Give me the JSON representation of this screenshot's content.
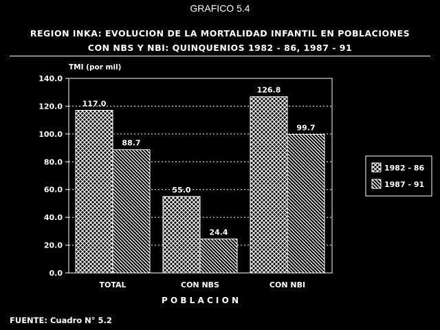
{
  "header": {
    "number": "GRAFICO 5.4",
    "title_line1": "REGION INKA: EVOLUCION DE LA MORTALIDAD INFANTIL EN POBLACIONES",
    "title_line2": "CON NBS Y NBI: QUINQUENIOS 1982 - 86, 1987 - 91"
  },
  "footer": {
    "source": "FUENTE: Cuadro N° 5.2"
  },
  "colors": {
    "background": "#000000",
    "foreground": "#ffffff"
  },
  "chart_data": {
    "type": "bar",
    "title": "REGION INKA: EVOLUCION DE LA MORTALIDAD INFANTIL EN POBLACIONES CON NBS Y NBI: QUINQUENIOS 1982 - 86, 1987 - 91",
    "ylabel": "TMI (por mil)",
    "xlabel": "P O B L A C I O N",
    "categories": [
      "TOTAL",
      "CON NBS",
      "CON NBI"
    ],
    "series": [
      {
        "name": "1982 - 86",
        "values": [
          117.0,
          55.0,
          126.8
        ],
        "labels": [
          "117.0",
          "55.0",
          "126.8"
        ],
        "pattern": "crosshatch"
      },
      {
        "name": "1987 - 91",
        "values": [
          88.7,
          24.4,
          99.7
        ],
        "labels": [
          "88.7",
          "24.4",
          "99.7"
        ],
        "pattern": "diagonal"
      }
    ],
    "ylim": [
      0,
      140
    ],
    "yticks": [
      0,
      20,
      40,
      60,
      80,
      100,
      120,
      140
    ],
    "ytick_labels": [
      "0.0",
      "20.0",
      "40.0",
      "60.0",
      "80.0",
      "100.0",
      "120.0",
      "140.0"
    ],
    "grid": true,
    "legend": "right"
  }
}
